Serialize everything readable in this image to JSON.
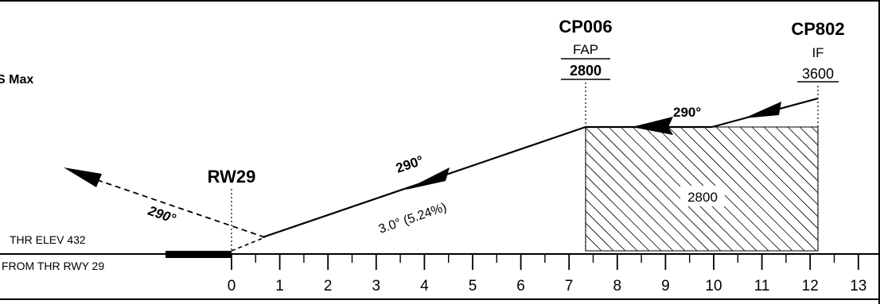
{
  "fixes": {
    "cp006": {
      "name": "CP006",
      "role": "FAP",
      "altitude": "2800"
    },
    "cp802": {
      "name": "CP802",
      "role": "IF",
      "altitude": "3600"
    }
  },
  "runway": {
    "name": "RW29",
    "thr_elev": "THR ELEV 432",
    "distance_ref": "FROM THR RWY 29"
  },
  "glidepath": {
    "course": "290°",
    "angle": "3.0° (5.24%)"
  },
  "intermediate": {
    "course": "290°",
    "min_alt": "2800"
  },
  "missed_approach": {
    "course": "290°"
  },
  "partial_label": "S Max",
  "distance_scale": {
    "labels": [
      "0",
      "1",
      "2",
      "3",
      "4",
      "5",
      "6",
      "7",
      "8",
      "9",
      "10",
      "11",
      "12",
      "13"
    ]
  }
}
